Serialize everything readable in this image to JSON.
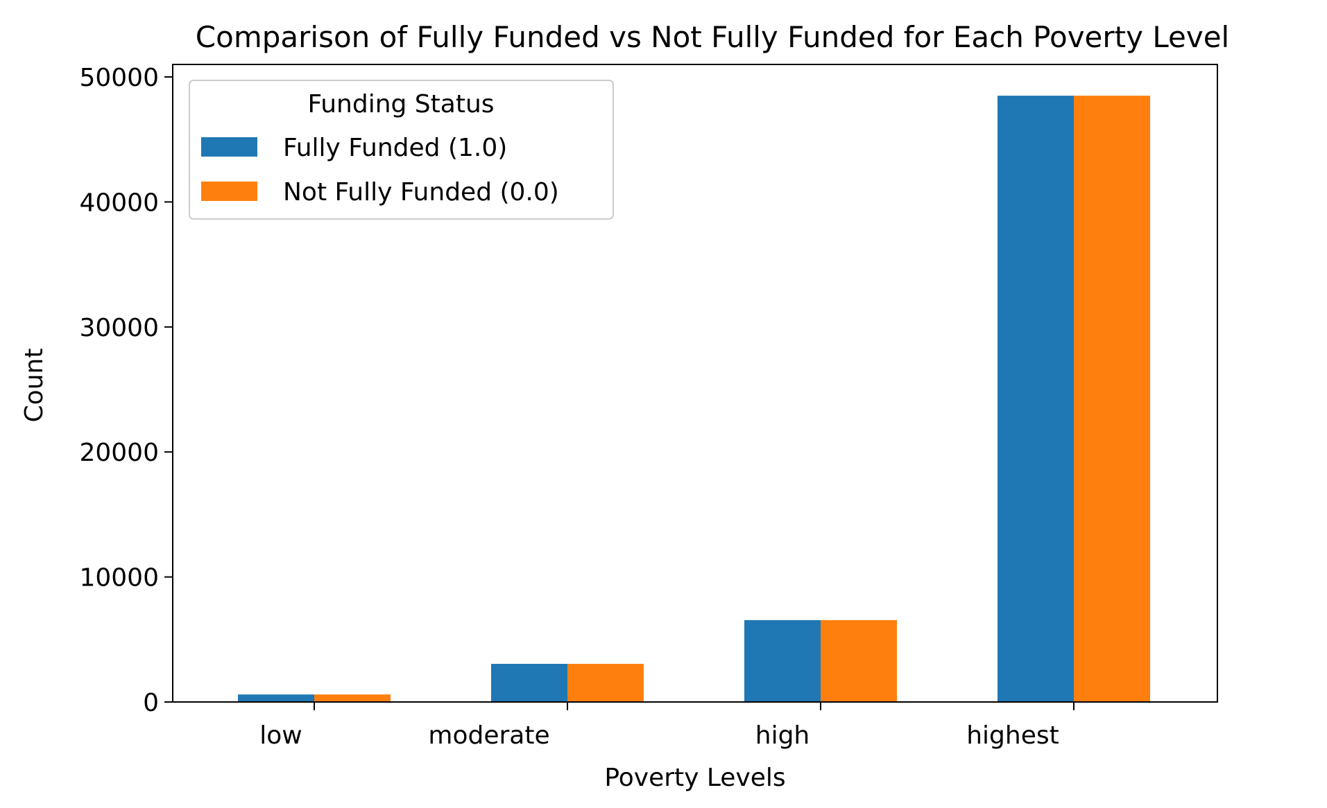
{
  "chart_data": {
    "type": "bar",
    "title": "Comparison of Fully Funded vs Not Fully Funded for Each Poverty Level",
    "xlabel": "Poverty Levels",
    "ylabel": "Count",
    "categories": [
      "low",
      "moderate",
      "high",
      "highest"
    ],
    "series": [
      {
        "name": "Fully Funded (1.0)",
        "color": "#1f77b4",
        "values": [
          600,
          3050,
          6550,
          48500
        ]
      },
      {
        "name": "Not Fully Funded (0.0)",
        "color": "#ff7f0e",
        "values": [
          600,
          3050,
          6550,
          48500
        ]
      }
    ],
    "ylim": [
      0,
      51000
    ],
    "yticks": [
      0,
      10000,
      20000,
      30000,
      40000,
      50000
    ],
    "ytick_labels": [
      "0",
      "10000",
      "20000",
      "30000",
      "40000",
      "50000"
    ],
    "grid": false,
    "legend": {
      "title": "Funding Status",
      "placement": "top-left"
    }
  }
}
